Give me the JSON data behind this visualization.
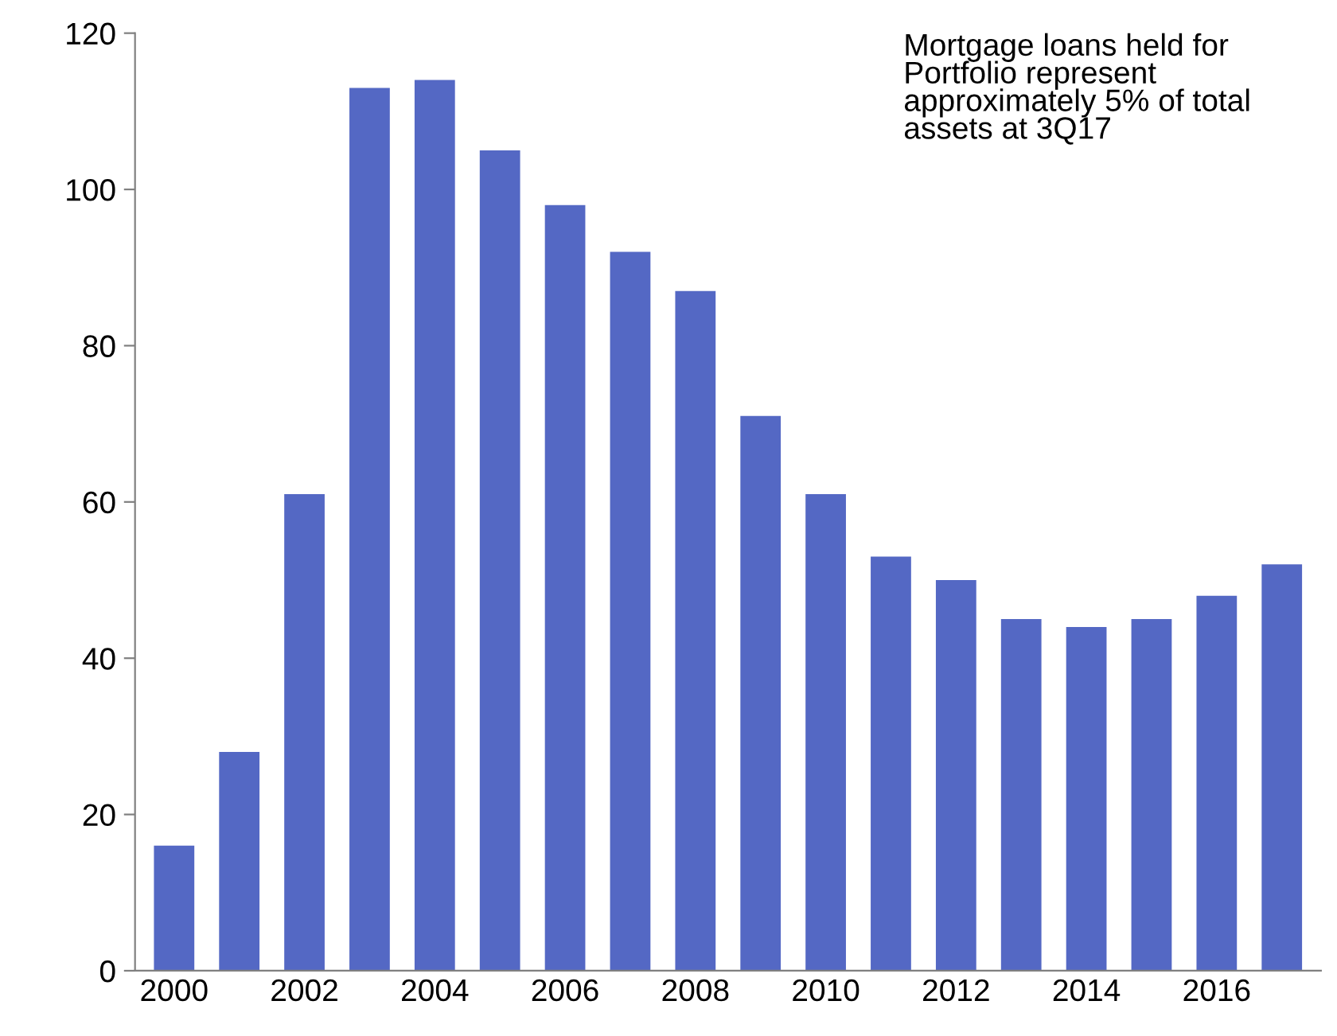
{
  "chart_data": {
    "type": "bar",
    "categories": [
      "2000",
      null,
      "2002",
      null,
      "2004",
      null,
      "2006",
      null,
      "2008",
      null,
      "2010",
      null,
      "2012",
      null,
      "2014",
      null,
      "2016",
      null
    ],
    "values": [
      16,
      28,
      61,
      113,
      114,
      105,
      98,
      92,
      87,
      71,
      61,
      53,
      50,
      45,
      44,
      45,
      48,
      52
    ],
    "color": "#5468c4",
    "ylim": [
      0,
      120
    ],
    "yticks": [
      0,
      20,
      40,
      60,
      80,
      100,
      120
    ],
    "annotations": [
      "Mortgage loans held for\nPortfolio represent\napproximately 5% of total\nassets at 3Q17"
    ],
    "grid": false
  }
}
